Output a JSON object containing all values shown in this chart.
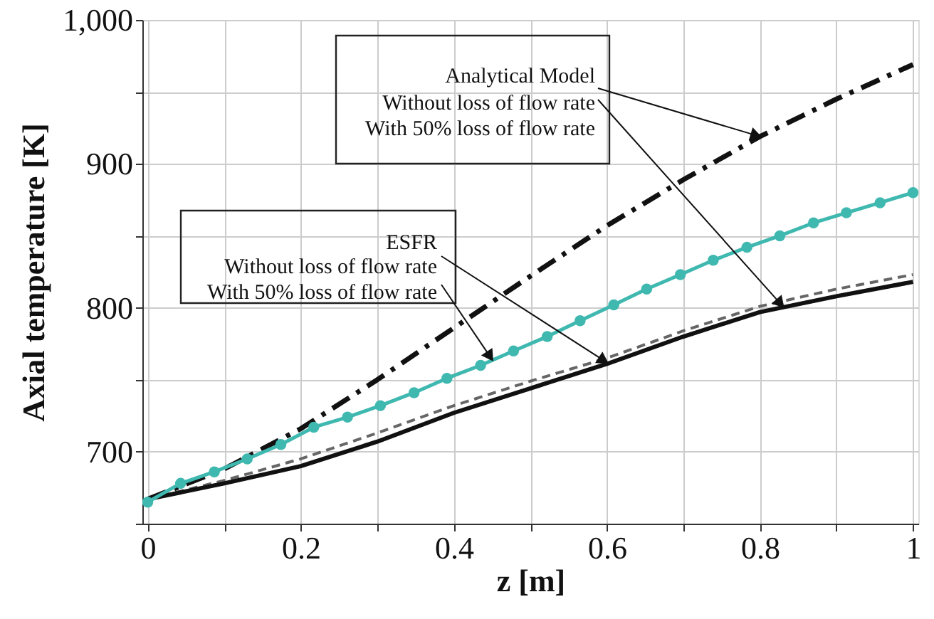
{
  "chart_data": {
    "type": "line",
    "xlabel": "z [m]",
    "ylabel": "Axial temperature [K]",
    "xlim": [
      -0.007,
      1.007
    ],
    "ylim": [
      650,
      1000
    ],
    "xticks": [
      0,
      {
        "value": 0.1,
        "label": null
      },
      0.2,
      {
        "value": 0.3,
        "label": null
      },
      0.4,
      {
        "value": 0.5,
        "label": null
      },
      0.6,
      {
        "value": 0.7,
        "label": null
      },
      0.8,
      {
        "value": 0.9,
        "label": null
      },
      1
    ],
    "yticks": [
      {
        "value": 650,
        "label": null
      },
      {
        "value": 700,
        "label": "700"
      },
      {
        "value": 750,
        "label": null
      },
      {
        "value": 800,
        "label": "800"
      },
      {
        "value": 850,
        "label": null
      },
      {
        "value": 900,
        "label": "900"
      },
      {
        "value": 950,
        "label": null
      },
      {
        "value": 1000,
        "label": "1,000"
      }
    ],
    "grid": true,
    "series": [
      {
        "color": "#111111",
        "line_style": "dashdot",
        "marker": "none",
        "x": [
          0,
          0.1,
          0.2,
          0.3,
          0.4,
          0.5,
          0.6,
          0.7,
          0.8,
          0.9,
          1.0
        ],
        "values": [
          667,
          688,
          716,
          750,
          786,
          822,
          857,
          889,
          919,
          945,
          969
        ]
      },
      {
        "color": "#3fb8b0",
        "line_style": "solid",
        "marker": "circle",
        "x": [
          0,
          0.043,
          0.087,
          0.13,
          0.174,
          0.217,
          0.261,
          0.304,
          0.348,
          0.391,
          0.435,
          0.478,
          0.522,
          0.565,
          0.609,
          0.652,
          0.696,
          0.739,
          0.783,
          0.826,
          0.87,
          0.913,
          0.957,
          1.0
        ],
        "values": [
          665,
          678,
          686,
          695,
          705,
          717,
          724,
          732,
          741,
          751,
          760,
          770,
          780,
          791,
          802,
          813,
          823,
          833,
          842,
          850,
          859,
          866,
          873,
          880
        ]
      },
      {
        "color": "#666666",
        "line_style": "dashed",
        "marker": "none",
        "x": [
          0,
          0.1,
          0.2,
          0.3,
          0.4,
          0.5,
          0.6,
          0.7,
          0.8,
          0.9,
          1.0
        ],
        "values": [
          667,
          680,
          695,
          713,
          732,
          749,
          765,
          784,
          801,
          813,
          823
        ]
      },
      {
        "color": "#111111",
        "line_style": "solid",
        "marker": "none",
        "x": [
          0,
          0.1,
          0.2,
          0.3,
          0.4,
          0.5,
          0.6,
          0.7,
          0.8,
          0.9,
          1.0
        ],
        "values": [
          667,
          678,
          690,
          707,
          727,
          744,
          761,
          780,
          797,
          808,
          818
        ]
      }
    ],
    "annotations": [
      {
        "text": "Analytical Model",
        "x": 0.8,
        "y": 919
      },
      {
        "text": "Without loss of flow rate",
        "x": 0.83,
        "y": 801
      },
      "With 50% loss of flow rate",
      "ESFR",
      {
        "text": "Without loss of flow rate",
        "x": 0.6,
        "y": 762
      },
      {
        "text": "With 50% loss of flow rate",
        "x": 0.45,
        "y": 764
      }
    ]
  }
}
